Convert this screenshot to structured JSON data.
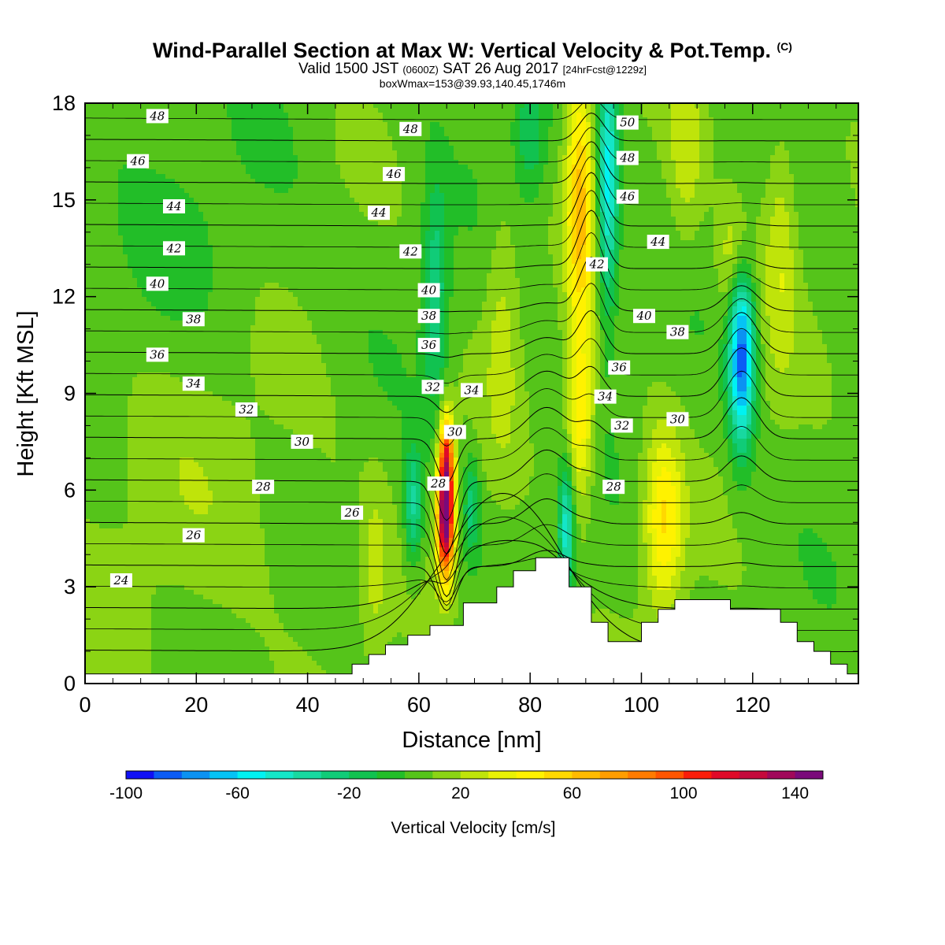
{
  "header": {
    "title_main": "Wind-Parallel Section at Max W: Vertical Velocity & Pot.Temp.",
    "title_mark": "(C)",
    "line2_a": "Valid 1500 JST ",
    "line2_b": "(0600Z)",
    "line2_c": " SAT 26 Aug 2017 ",
    "line2_d": "[24hrFcst@1229z]",
    "line3": "boxWmax=153@39.93,140.45,1746m"
  },
  "chart_data": {
    "type": "heatmap",
    "title": "Wind-Parallel Section at Max W: Vertical Velocity & Pot.Temp.",
    "xlabel": "Distance [nm]",
    "ylabel": "Height [Kft MSL]",
    "xlim": [
      0,
      139
    ],
    "ylim": [
      0,
      18
    ],
    "x_ticks": [
      "0",
      "20",
      "40",
      "60",
      "80",
      "100",
      "120"
    ],
    "x_tick_values": [
      0,
      20,
      40,
      60,
      80,
      100,
      120
    ],
    "y_ticks": [
      "0",
      "3",
      "6",
      "9",
      "12",
      "15",
      "18"
    ],
    "y_tick_values": [
      0,
      3,
      6,
      9,
      12,
      15,
      18
    ],
    "colorbar": {
      "title": "Vertical Velocity [cm/s]",
      "labels": [
        "-100",
        "-60",
        "-20",
        "20",
        "60",
        "100",
        "140"
      ],
      "label_values": [
        -100,
        -60,
        -20,
        20,
        60,
        100,
        140
      ],
      "levels": [
        -100,
        -90,
        -80,
        -70,
        -60,
        -50,
        -40,
        -30,
        -20,
        -10,
        0,
        10,
        20,
        30,
        40,
        50,
        60,
        70,
        80,
        90,
        100,
        110,
        120,
        130,
        140,
        150
      ],
      "colors": [
        "#1010f5",
        "#0b5cf5",
        "#0b92f2",
        "#05c3f5",
        "#00f2f2",
        "#14e6c8",
        "#18d8a0",
        "#10cc78",
        "#11c250",
        "#22be28",
        "#55c41a",
        "#8bd414",
        "#bfe40a",
        "#e9f205",
        "#fff200",
        "#ffd800",
        "#ffbb00",
        "#ff9d00",
        "#ff7b00",
        "#ff5500",
        "#fa1e0a",
        "#e00a28",
        "#c40a3c",
        "#a0085a",
        "#7a0a7a"
      ]
    },
    "field_features": [
      {
        "x": 65,
        "y": 5.5,
        "w": 150,
        "note": "updraft core"
      },
      {
        "x": 59,
        "y": 5.3,
        "w": -25
      },
      {
        "x": 69,
        "y": 5.8,
        "w": -10
      },
      {
        "x": 63,
        "y": 11.5,
        "w": -30
      },
      {
        "x": 88.5,
        "y": 15.5,
        "w": 50
      },
      {
        "x": 94,
        "y": 16,
        "w": -50
      },
      {
        "x": 86.5,
        "y": 4.5,
        "w": -50
      },
      {
        "x": 104,
        "y": 5,
        "w": 45
      },
      {
        "x": 118,
        "y": 10.3,
        "w": -85
      },
      {
        "x": 124,
        "y": 13.5,
        "w": 20
      },
      {
        "x": 75,
        "y": 11,
        "w": 15
      },
      {
        "x": 52,
        "y": 3.5,
        "w": 18
      }
    ],
    "terrain": [
      [
        0,
        0.3
      ],
      [
        48,
        0.3
      ],
      [
        48,
        0.6
      ],
      [
        51,
        0.6
      ],
      [
        51,
        0.9
      ],
      [
        54,
        0.9
      ],
      [
        54,
        1.2
      ],
      [
        58,
        1.2
      ],
      [
        58,
        1.5
      ],
      [
        62,
        1.5
      ],
      [
        62,
        1.8
      ],
      [
        68,
        1.8
      ],
      [
        68,
        2.5
      ],
      [
        74,
        2.5
      ],
      [
        74,
        3.0
      ],
      [
        77,
        3.0
      ],
      [
        77,
        3.5
      ],
      [
        81,
        3.5
      ],
      [
        81,
        3.9
      ],
      [
        87,
        3.9
      ],
      [
        87,
        3.0
      ],
      [
        91,
        3.0
      ],
      [
        91,
        1.9
      ],
      [
        94,
        1.9
      ],
      [
        94,
        1.3
      ],
      [
        100,
        1.3
      ],
      [
        100,
        1.9
      ],
      [
        103,
        1.9
      ],
      [
        103,
        2.3
      ],
      [
        106,
        2.3
      ],
      [
        106,
        2.6
      ],
      [
        116,
        2.6
      ],
      [
        116,
        2.3
      ],
      [
        125,
        2.3
      ],
      [
        125,
        1.9
      ],
      [
        128,
        1.9
      ],
      [
        128,
        1.3
      ],
      [
        131,
        1.3
      ],
      [
        131,
        1.0
      ],
      [
        134,
        1.0
      ],
      [
        134,
        0.6
      ],
      [
        137,
        0.6
      ],
      [
        137,
        0.3
      ],
      [
        139,
        0.3
      ]
    ],
    "isentropes": [
      {
        "theta": 24,
        "label": "24",
        "label_x": 6.5,
        "label_y": 3.2
      },
      {
        "theta": 26,
        "label": "26",
        "label_x": 19.5,
        "label_y": 4.6,
        "label2": "26",
        "label2_x": 48,
        "label2_y": 5.3
      },
      {
        "theta": 28,
        "label": "28",
        "label_x": 32,
        "label_y": 6.1,
        "label2": "28",
        "label2_x": 95,
        "label2_y": 6.1
      },
      {
        "theta": 30,
        "label": "30",
        "label_x": 39,
        "label_y": 7.5,
        "label2": "30",
        "label2_x": 106.5,
        "label2_y": 8.2
      },
      {
        "theta": 32,
        "label": "32",
        "label_x": 29,
        "label_y": 8.5,
        "label2": "32",
        "label2_x": 96.5,
        "label2_y": 8.0
      },
      {
        "theta": 34,
        "label": "34",
        "label_x": 19.5,
        "label_y": 9.3,
        "label2": "34",
        "label2_x": 93.5,
        "label2_y": 8.9
      },
      {
        "theta": 36,
        "label": "36",
        "label_x": 13,
        "label_y": 10.2,
        "label2": "36",
        "label2_x": 96,
        "label2_y": 9.8
      },
      {
        "theta": 38,
        "label": "38",
        "label_x": 19.5,
        "label_y": 11.3,
        "label2": "38",
        "label2_x": 106.5,
        "label2_y": 10.9
      },
      {
        "theta": 40,
        "label": "40",
        "label_x": 13,
        "label_y": 12.4,
        "label2": "40",
        "label2_x": 100.5,
        "label2_y": 11.4
      },
      {
        "theta": 42,
        "label": "42",
        "label_x": 16,
        "label_y": 13.5,
        "label2": "42",
        "label2_x": 92,
        "label2_y": 13.0
      },
      {
        "theta": 44,
        "label": "44",
        "label_x": 16,
        "label_y": 14.8,
        "label2": "44",
        "label2_x": 103,
        "label2_y": 13.7
      },
      {
        "theta": 46,
        "label": "46",
        "label_x": 9.5,
        "label_y": 16.2,
        "label2": "46",
        "label2_x": 97.5,
        "label2_y": 15.1
      },
      {
        "theta": 48,
        "label": "48",
        "label_x": 13,
        "label_y": 17.6,
        "label2": "48",
        "label2_x": 97.5,
        "label2_y": 16.3
      },
      {
        "theta": 50,
        "label": "50",
        "label_x": 97.5,
        "label_y": 17.4
      }
    ],
    "core_labels": [
      {
        "label": "28",
        "x": 63.5,
        "y": 6.2
      },
      {
        "label": "30",
        "x": 66.5,
        "y": 7.8
      },
      {
        "label": "32",
        "x": 62.5,
        "y": 9.2
      },
      {
        "label": "34",
        "x": 69.5,
        "y": 9.1
      },
      {
        "label": "36",
        "x": 61.8,
        "y": 10.5
      },
      {
        "label": "38",
        "x": 61.8,
        "y": 11.4
      },
      {
        "label": "40",
        "x": 61.8,
        "y": 12.2
      },
      {
        "label": "42",
        "x": 58.5,
        "y": 13.4
      },
      {
        "label": "44",
        "x": 52.8,
        "y": 14.6
      },
      {
        "label": "46",
        "x": 55.5,
        "y": 15.8
      },
      {
        "label": "48",
        "x": 58.5,
        "y": 17.2
      }
    ]
  }
}
